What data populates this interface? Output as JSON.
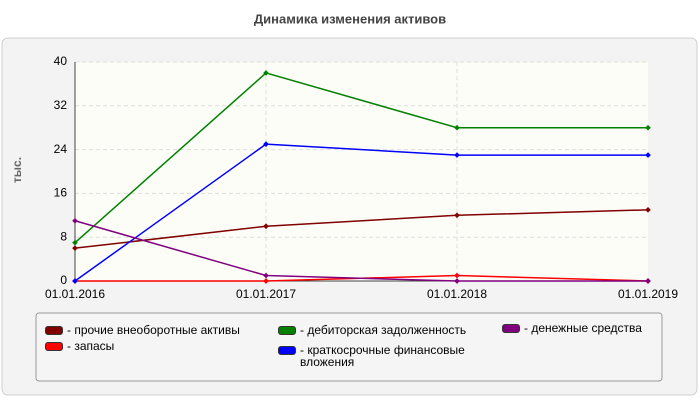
{
  "chart_data": {
    "type": "line",
    "title": "Динамика изменения активов",
    "ylabel": "тыс.",
    "categories": [
      "01.01.2016",
      "01.01.2017",
      "01.01.2018",
      "01.01.2019"
    ],
    "series": [
      {
        "name": "- прочие внеоборотные активы",
        "color": "#800000",
        "values": [
          6,
          10,
          12,
          13
        ]
      },
      {
        "name": "- запасы",
        "color": "#ff0000",
        "values": [
          0,
          0,
          1,
          0
        ]
      },
      {
        "name": "- дебиторская задолженность",
        "color": "#008000",
        "values": [
          7,
          38,
          28,
          28
        ]
      },
      {
        "name": "- краткосрочные финансовые вложения",
        "color": "#0000ff",
        "values": [
          0,
          25,
          23,
          23
        ]
      },
      {
        "name": "- денежные средства",
        "color": "#800080",
        "values": [
          11,
          1,
          0,
          0
        ]
      }
    ],
    "ylim": [
      0,
      40
    ],
    "yticks": [
      0,
      8,
      16,
      24,
      32,
      40
    ],
    "grid": true
  }
}
